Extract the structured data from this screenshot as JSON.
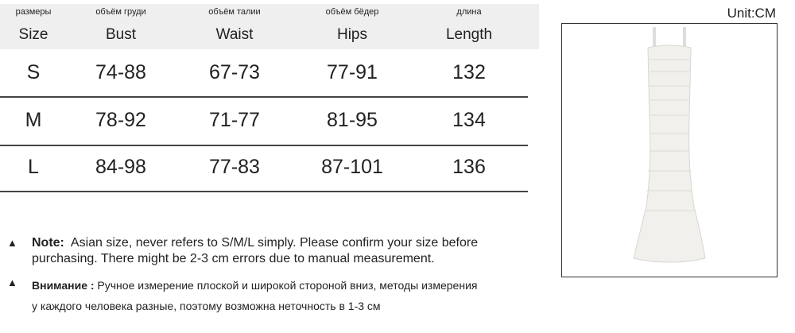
{
  "unit_label": "Unit:CM",
  "table": {
    "headers": [
      {
        "ru": "размеры",
        "en": "Size"
      },
      {
        "ru": "объём груди",
        "en": "Bust"
      },
      {
        "ru": "объём талии",
        "en": "Waist"
      },
      {
        "ru": "объём бёдер",
        "en": "Hips"
      },
      {
        "ru": "длина",
        "en": "Length"
      }
    ],
    "rows": [
      [
        "S",
        "74-88",
        "67-73",
        "77-91",
        "132"
      ],
      [
        "M",
        "78-92",
        "71-77",
        "81-95",
        "134"
      ],
      [
        "L",
        "84-98",
        "77-83",
        "87-101",
        "136"
      ]
    ]
  },
  "notes": {
    "en_label": "Note:",
    "en_line1": "Asian size, never refers to S/M/L simply. Please confirm your size before",
    "en_line2": "purchasing. There might be 2-3 cm errors due to manual measurement.",
    "ru_label": "Внимание :",
    "ru_line1": "Ручное измерение плоской и широкой стороной вниз, методы измерения",
    "ru_line2": "у каждого человека разные, поэтому возможна неточность в 1-3 см"
  }
}
